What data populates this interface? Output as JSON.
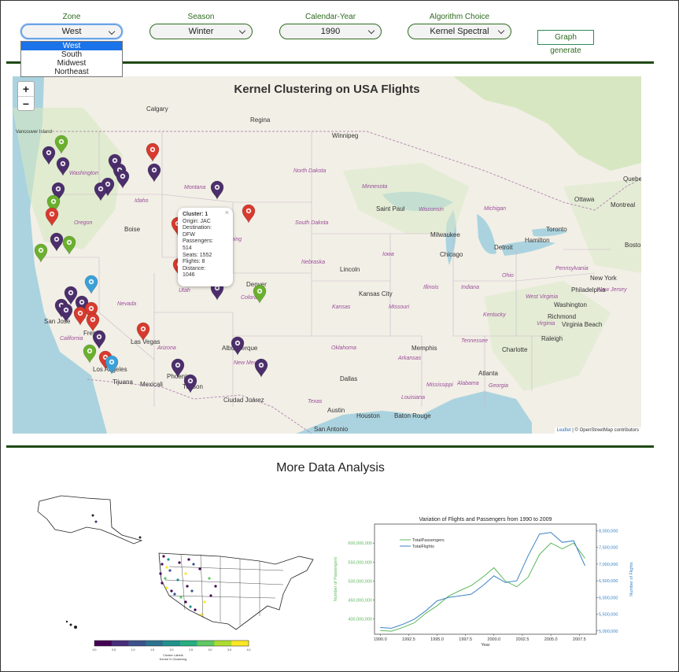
{
  "controls": {
    "zone": {
      "label": "Zone",
      "value": "West",
      "options": [
        "West",
        "South",
        "Midwest",
        "Northeast"
      ]
    },
    "season": {
      "label": "Season",
      "value": "Winter"
    },
    "year": {
      "label": "Calendar-Year",
      "value": "1990"
    },
    "algorithm": {
      "label": "Algorithm Choice",
      "value": "Kernel Spectral"
    },
    "generate_label": "Graph generate"
  },
  "map": {
    "title": "Kernel Clustering on USA Flights",
    "zoom_in": "+",
    "zoom_out": "−",
    "cities": [
      {
        "name": "Calgary"
      },
      {
        "name": "Regina"
      },
      {
        "name": "Winnipeg"
      },
      {
        "name": "Vancouver Island"
      },
      {
        "name": "Boise"
      },
      {
        "name": "Saint Paul"
      },
      {
        "name": "Milwaukee"
      },
      {
        "name": "Chicago"
      },
      {
        "name": "Toronto"
      },
      {
        "name": "Hamilton"
      },
      {
        "name": "Ottawa"
      },
      {
        "name": "Montreal"
      },
      {
        "name": "Quebec"
      },
      {
        "name": "Detroit"
      },
      {
        "name": "Lincoln"
      },
      {
        "name": "Kansas City"
      },
      {
        "name": "Denver"
      },
      {
        "name": "San Jose"
      },
      {
        "name": "Fresno"
      },
      {
        "name": "Las Vegas"
      },
      {
        "name": "Los Angeles"
      },
      {
        "name": "Tijuana"
      },
      {
        "name": "Mexicali"
      },
      {
        "name": "Phoenix"
      },
      {
        "name": "Tucson"
      },
      {
        "name": "Albuquerque"
      },
      {
        "name": "Ciudad Juárez"
      },
      {
        "name": "Dallas"
      },
      {
        "name": "Austin"
      },
      {
        "name": "Houston"
      },
      {
        "name": "San Antonio"
      },
      {
        "name": "Baton Rouge"
      },
      {
        "name": "Memphis"
      },
      {
        "name": "Atlanta"
      },
      {
        "name": "Charlotte"
      },
      {
        "name": "Raleigh"
      },
      {
        "name": "Richmond"
      },
      {
        "name": "Washington"
      },
      {
        "name": "Virginia Beach"
      },
      {
        "name": "New York"
      },
      {
        "name": "Philadelphia"
      },
      {
        "name": "Boston"
      }
    ],
    "states": [
      {
        "name": "Washington"
      },
      {
        "name": "Oregon"
      },
      {
        "name": "Idaho"
      },
      {
        "name": "Montana"
      },
      {
        "name": "Wyoming"
      },
      {
        "name": "North Dakota"
      },
      {
        "name": "South Dakota"
      },
      {
        "name": "Minnesota"
      },
      {
        "name": "Nebraska"
      },
      {
        "name": "Iowa"
      },
      {
        "name": "Wisconsin"
      },
      {
        "name": "Michigan"
      },
      {
        "name": "Nevada"
      },
      {
        "name": "Utah"
      },
      {
        "name": "Colorado"
      },
      {
        "name": "Kansas"
      },
      {
        "name": "Missouri"
      },
      {
        "name": "Illinois"
      },
      {
        "name": "Indiana"
      },
      {
        "name": "Ohio"
      },
      {
        "name": "California"
      },
      {
        "name": "Arizona"
      },
      {
        "name": "New Mexico"
      },
      {
        "name": "Oklahoma"
      },
      {
        "name": "Arkansas"
      },
      {
        "name": "Tennessee"
      },
      {
        "name": "Kentucky"
      },
      {
        "name": "Texas"
      },
      {
        "name": "Louisiana"
      },
      {
        "name": "Mississippi"
      },
      {
        "name": "Alabama"
      },
      {
        "name": "Georgia"
      },
      {
        "name": "West Virginia"
      },
      {
        "name": "Pennsylvania"
      },
      {
        "name": "Virginia"
      },
      {
        "name": "New Jersey"
      }
    ],
    "popup": {
      "title": "Cluster: 1",
      "lines": [
        "Origin: JAC",
        "Destination:",
        "DFW",
        "Passengers:",
        "514",
        "Seats: 1552",
        "Flights: 8",
        "Distance:",
        "1046"
      ],
      "close": "×"
    },
    "attribution_link": "Leaflet",
    "attribution_text": " | © OpenStreetMap contributors",
    "colors": {
      "purple": "#4b2e6b",
      "red": "#d83a2e",
      "green": "#6ab02e",
      "blue": "#3aa0d8"
    }
  },
  "analysis": {
    "title": "More Data Analysis"
  },
  "colorbar": {
    "colors": [
      "#440154",
      "#472d7b",
      "#3b528b",
      "#2c728e",
      "#21918c",
      "#28ae80",
      "#5ec962",
      "#addc30",
      "#fde725"
    ],
    "ticks": [
      "0.0",
      "0.5",
      "1.0",
      "1.5",
      "2.0",
      "2.5",
      "3.0",
      "3.5",
      "4.0"
    ],
    "label1": "Cluster Labels",
    "label2": "Kernel K-Clustering"
  },
  "chart_data": {
    "type": "line",
    "title": "Variation of Flights and Passengers from 1990 to 2009",
    "xlabel": "Year",
    "ylabel_left": "Number of Passengers",
    "ylabel_right": "Number of Flights",
    "xlim": [
      1989.5,
      2009
    ],
    "ylim_left": [
      360000000,
      650000000
    ],
    "ylim_right": [
      4900000,
      8200000
    ],
    "x_ticks": [
      "1990.0",
      "1992.5",
      "1995.0",
      "1997.5",
      "2000.0",
      "2002.5",
      "2005.0",
      "2007.5"
    ],
    "y_left_ticks": [
      "400,000,000",
      "450,000,000",
      "500,000,000",
      "550,000,000",
      "600,000,000"
    ],
    "y_right_ticks": [
      "5,000,000",
      "5,500,000",
      "6,000,000",
      "6,500,000",
      "7,000,000",
      "7,500,000",
      "8,000,000"
    ],
    "x": [
      1990,
      1991,
      1992,
      1993,
      1994,
      1995,
      1996,
      1997,
      1998,
      1999,
      2000,
      2001,
      2002,
      2003,
      2004,
      2005,
      2006,
      2007,
      2008
    ],
    "series": [
      {
        "name": "TotalPassengers",
        "axis": "left",
        "color": "#5cb85c",
        "values": [
          370000000,
          368000000,
          378000000,
          390000000,
          415000000,
          435000000,
          460000000,
          475000000,
          488000000,
          510000000,
          535000000,
          500000000,
          485000000,
          510000000,
          570000000,
          600000000,
          585000000,
          600000000,
          560000000
        ]
      },
      {
        "name": "TotalFlights",
        "axis": "right",
        "color": "#3b82c4",
        "values": [
          5100000,
          5080000,
          5200000,
          5350000,
          5600000,
          5900000,
          6000000,
          6050000,
          6100000,
          6350000,
          6650000,
          6450000,
          6500000,
          7250000,
          7900000,
          7950000,
          7650000,
          7700000,
          6950000
        ]
      }
    ]
  }
}
